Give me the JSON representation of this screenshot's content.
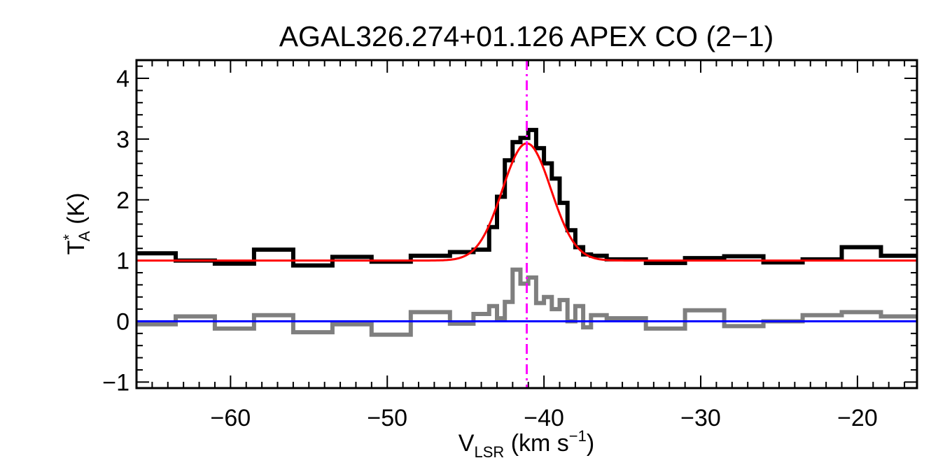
{
  "chart_data": {
    "type": "line",
    "title": "AGAL326.274+01.126  APEX CO (2−1)",
    "xlabel": {
      "main": "V",
      "sub": "LSR",
      "rest": " (km s",
      "sup": "−1",
      "close": ")"
    },
    "ylabel": {
      "main": "T",
      "sup": "*",
      "sub": "A",
      "rest": " (K)"
    },
    "xlim": [
      -66,
      -16.2
    ],
    "ylim": [
      -1.1,
      4.3
    ],
    "x_ticks": [
      -60,
      -50,
      -40,
      -30,
      -20
    ],
    "x_tick_labels": [
      "−60",
      "−50",
      "−40",
      "−30",
      "−20"
    ],
    "y_ticks": [
      -1,
      0,
      1,
      2,
      3,
      4
    ],
    "y_tick_labels": [
      "−1",
      "0",
      "1",
      "2",
      "3",
      "4"
    ],
    "colors": {
      "spectrum": "#000000",
      "residual": "#7f7f7f",
      "fit": "#ff0000",
      "baseline": "#0000ff",
      "vline": "#ff00ff",
      "axes": "#000000"
    },
    "series": [
      {
        "name": "spectrum",
        "step": true,
        "x": [
          -66.0,
          -63.5,
          -61.0,
          -58.5,
          -56.0,
          -53.5,
          -51.0,
          -48.5,
          -46.0,
          -44.5,
          -43.5,
          -43.0,
          -42.5,
          -42.0,
          -41.5,
          -41.0,
          -40.5,
          -40.0,
          -39.5,
          -39.0,
          -38.5,
          -38.0,
          -37.5,
          -37.0,
          -36.0,
          -33.5,
          -31.0,
          -28.5,
          -26.0,
          -23.5,
          -21.0,
          -18.5,
          -16.2
        ],
        "y": [
          1.12,
          1.0,
          0.95,
          1.18,
          0.92,
          1.06,
          0.98,
          1.08,
          1.14,
          1.18,
          1.55,
          2.05,
          2.65,
          2.95,
          3.02,
          3.15,
          2.85,
          2.6,
          2.35,
          1.95,
          1.5,
          1.22,
          1.1,
          1.08,
          1.02,
          0.96,
          1.04,
          1.07,
          0.97,
          1.02,
          1.22,
          1.08,
          1.1
        ]
      },
      {
        "name": "residual",
        "step": true,
        "x": [
          -66.0,
          -63.5,
          -61.0,
          -58.5,
          -56.0,
          -53.5,
          -51.0,
          -48.5,
          -46.0,
          -44.5,
          -43.5,
          -43.0,
          -42.5,
          -42.0,
          -41.5,
          -41.0,
          -40.5,
          -40.0,
          -39.5,
          -39.0,
          -38.5,
          -38.0,
          -37.5,
          -37.0,
          -36.0,
          -33.5,
          -31.0,
          -28.5,
          -26.0,
          -23.5,
          -21.0,
          -18.5,
          -16.2
        ],
        "y": [
          -0.05,
          0.08,
          -0.12,
          0.1,
          -0.18,
          -0.05,
          -0.22,
          0.15,
          -0.04,
          0.12,
          0.25,
          0.05,
          0.32,
          0.85,
          0.62,
          0.72,
          0.3,
          0.4,
          0.2,
          0.35,
          0.0,
          0.25,
          -0.1,
          0.1,
          0.05,
          -0.12,
          0.18,
          -0.08,
          0.0,
          0.1,
          0.15,
          0.08,
          0.1
        ]
      },
      {
        "name": "gaussian fit",
        "gauss": {
          "amp": 1.93,
          "center": -41.1,
          "sigma": 1.55,
          "offset": 1.0,
          "from": -66.0,
          "to": -16.2
        }
      },
      {
        "name": "zero baseline",
        "x": [
          -66.0,
          -16.2
        ],
        "y": [
          0,
          0
        ]
      }
    ],
    "vline": {
      "x": -41.1,
      "style": "dash-dot"
    }
  }
}
